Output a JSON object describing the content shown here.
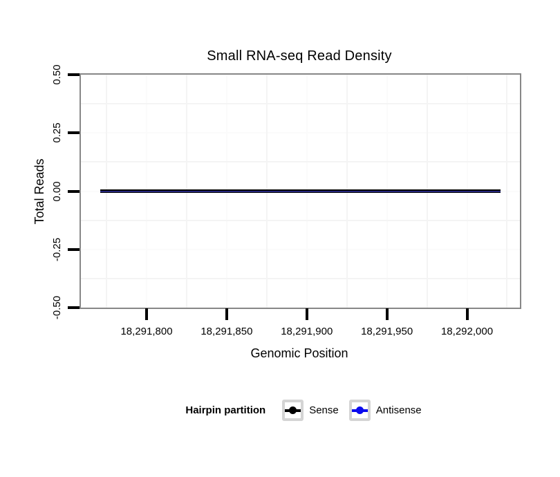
{
  "title": "Small RNA-seq Read Density",
  "x_axis": {
    "label": "Genomic Position",
    "tick_labels": [
      "18,291,800",
      "18,291,850",
      "18,291,900",
      "18,291,950",
      "18,292,000"
    ],
    "tick_values": [
      18291800,
      18291850,
      18291900,
      18291950,
      18292000
    ]
  },
  "y_axis": {
    "label": "Total Reads",
    "tick_labels": [
      "0.50",
      "0.25",
      "0.00",
      "-0.25",
      "-0.50"
    ],
    "tick_values": [
      0.5,
      0.25,
      0,
      -0.25,
      -0.5
    ]
  },
  "legend": {
    "title": "Hairpin partition",
    "items": [
      {
        "label": "Sense",
        "color": "#000000"
      },
      {
        "label": "Antisense",
        "color": "#0b0bee"
      }
    ]
  },
  "colors": {
    "panel_border": "#878787",
    "axis_tick": "#000000",
    "grid_major": "#fbfbfb",
    "grid_minor": "#f4f4f4",
    "legend_key_border": "#d4d4d4",
    "sense": "#000000",
    "antisense": "#0b0bee",
    "overlap_stripe": "#26267e"
  },
  "chart_data": {
    "type": "line",
    "title": "Small RNA-seq Read Density",
    "xlabel": "Genomic Position",
    "ylabel": "Total Reads",
    "xlim": [
      18291759,
      18292033
    ],
    "ylim": [
      -0.5,
      0.5
    ],
    "x_ticks": [
      18291800,
      18291850,
      18291900,
      18291950,
      18292000
    ],
    "y_ticks": [
      0.5,
      0.25,
      0,
      -0.25,
      -0.5
    ],
    "grid": "faint minor gridlines between ticks; white panel background",
    "legend_position": "bottom",
    "series": [
      {
        "name": "Sense",
        "color": "#000000",
        "x": [
          18291771,
          18292021
        ],
        "y": [
          0,
          0
        ]
      },
      {
        "name": "Antisense",
        "color": "#0b0bee",
        "x": [
          18291771,
          18292021
        ],
        "y": [
          0,
          0
        ]
      }
    ]
  }
}
